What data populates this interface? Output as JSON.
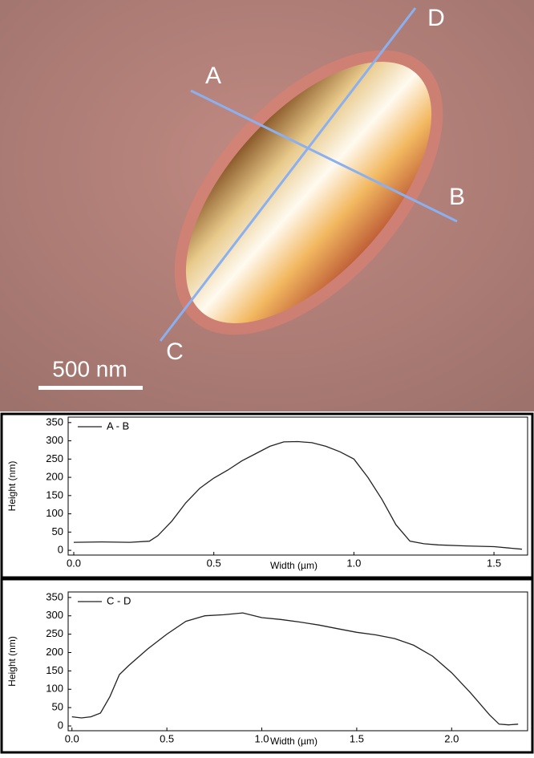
{
  "image": {
    "labels": [
      "A",
      "B",
      "C",
      "D"
    ],
    "scale_bar": "500 nm"
  },
  "chart_data": [
    {
      "type": "line",
      "y_label": "Height (nm)",
      "x_label": "Width (µm)",
      "x": [
        0,
        0.1,
        0.2,
        0.27,
        0.3,
        0.35,
        0.4,
        0.45,
        0.5,
        0.55,
        0.6,
        0.65,
        0.7,
        0.75,
        0.8,
        0.85,
        0.9,
        0.95,
        1.0,
        1.05,
        1.1,
        1.15,
        1.2,
        1.25,
        1.3,
        1.4,
        1.5,
        1.6
      ],
      "series": [
        {
          "name": "A - B",
          "color": "#222222",
          "values": [
            22,
            23,
            22,
            25,
            40,
            80,
            130,
            170,
            198,
            220,
            245,
            265,
            285,
            297,
            298,
            295,
            285,
            270,
            250,
            200,
            140,
            70,
            25,
            18,
            15,
            12,
            10,
            3
          ]
        }
      ],
      "xlim": [
        -0.02,
        1.62
      ],
      "ylim": [
        -13,
        365
      ],
      "xticks": [
        {
          "value": 0,
          "label": "0.0"
        },
        0.5,
        {
          "value": 1,
          "label": "1.0"
        },
        1.5
      ],
      "yticks": [
        0,
        50,
        100,
        150,
        200,
        250,
        300,
        350
      ]
    },
    {
      "type": "line",
      "y_label": "Height (nm)",
      "x_label": "Width (µm)",
      "x": [
        0,
        0.05,
        0.1,
        0.15,
        0.2,
        0.25,
        0.3,
        0.4,
        0.5,
        0.6,
        0.7,
        0.8,
        0.9,
        1.0,
        1.1,
        1.2,
        1.3,
        1.4,
        1.5,
        1.6,
        1.7,
        1.8,
        1.9,
        2.0,
        2.1,
        2.2,
        2.25,
        2.3,
        2.35
      ],
      "series": [
        {
          "name": "C - D",
          "color": "#222222",
          "values": [
            25,
            22,
            25,
            35,
            80,
            140,
            165,
            210,
            250,
            285,
            300,
            303,
            308,
            295,
            290,
            283,
            275,
            265,
            255,
            248,
            238,
            220,
            190,
            145,
            90,
            30,
            5,
            3,
            5
          ]
        }
      ],
      "xlim": [
        -0.02,
        2.4
      ],
      "ylim": [
        -13,
        365
      ],
      "xticks": [
        {
          "value": 0,
          "label": "0.0"
        },
        0.5,
        {
          "value": 1,
          "label": "1.0"
        },
        1.5,
        {
          "value": 2,
          "label": "2.0"
        }
      ],
      "yticks": [
        0,
        50,
        100,
        150,
        200,
        250,
        300,
        350
      ]
    }
  ]
}
